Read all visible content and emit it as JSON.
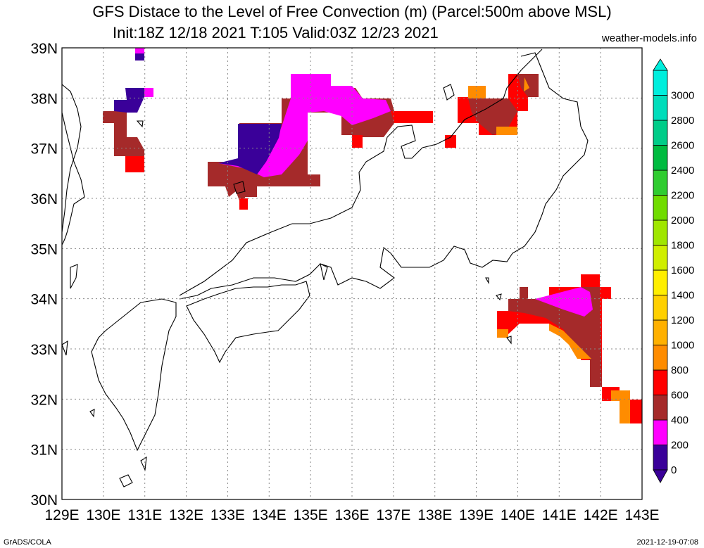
{
  "title": {
    "line1": "GFS Distace to the Level of Free Convection (m) (Parcel:500m above MSL)",
    "line2": "Init:18Z 12/18 2021 T:105 Valid:03Z 12/23 2021",
    "site": "weather-models.info"
  },
  "footer": {
    "left": "GrADS/COLA",
    "right": "2021-12-19-07:08"
  },
  "map": {
    "lon_range": [
      129,
      143
    ],
    "lat_range": [
      30,
      39
    ],
    "grid": true,
    "lon_labels": [
      "129E",
      "130E",
      "131E",
      "132E",
      "133E",
      "134E",
      "135E",
      "136E",
      "137E",
      "138E",
      "139E",
      "140E",
      "141E",
      "142E",
      "143E"
    ],
    "lat_labels": [
      "30N",
      "31N",
      "32N",
      "33N",
      "34N",
      "35N",
      "36N",
      "37N",
      "38N",
      "39N"
    ]
  },
  "colorbar": {
    "levels": [
      "0",
      "200",
      "400",
      "600",
      "800",
      "1000",
      "1200",
      "1400",
      "1600",
      "1800",
      "2000",
      "2200",
      "2400",
      "2600",
      "2800",
      "3000"
    ],
    "colors": [
      "#3a0099",
      "#ff00ff",
      "#a52a2a",
      "#ff0000",
      "#ff8c00",
      "#ffb000",
      "#ffd000",
      "#ffee00",
      "#d0ee00",
      "#a0e600",
      "#70dc00",
      "#30cc30",
      "#00bb40",
      "#00cc88",
      "#00ddbb",
      "#00eedd"
    ]
  }
}
